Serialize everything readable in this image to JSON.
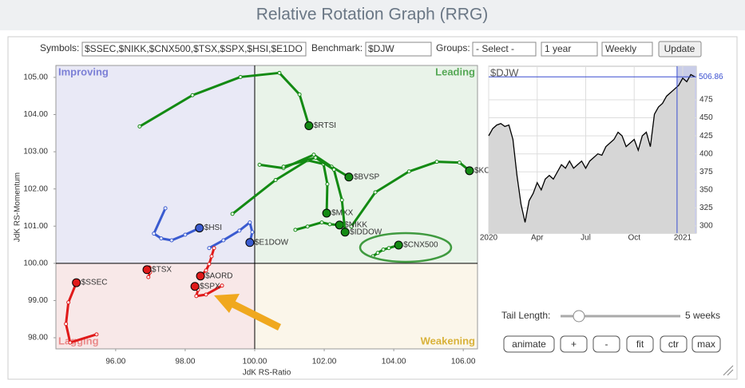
{
  "header": {
    "title": "Relative Rotation Graph (RRG)"
  },
  "controls": {
    "symbols_label": "Symbols:",
    "symbols": "$SSEC,$NIKK,$CNX500,$TSX,$SPX,$HSI,$E1DO",
    "benchmark_label": "Benchmark:",
    "benchmark": "$DJW",
    "groups_label": "Groups:",
    "groups": "- Select -",
    "period": "1 year",
    "interval": "Weekly",
    "update": "Update",
    "tail_label": "Tail Length:",
    "tail_value": "5 weeks",
    "buttons": [
      "animate",
      "+",
      "-",
      "fit",
      "ctr",
      "max"
    ]
  },
  "chart_data": [
    {
      "type": "rrg",
      "x_label": "JdK RS-Ratio",
      "y_label": "JdK RS-Momentum",
      "quadrants": [
        {
          "name": "Improving",
          "color": "#7b7fd6"
        },
        {
          "name": "Leading",
          "color": "#55a855"
        },
        {
          "name": "Weakening",
          "color": "#d9b23a"
        },
        {
          "name": "Lagging",
          "color": "#ea8a8a"
        }
      ],
      "quadrant_center": {
        "x": 100,
        "y": 100
      },
      "xlim": [
        94.28,
        106.41
      ],
      "ylim": [
        97.7,
        105.32
      ],
      "xticks": [
        {
          "value": 96,
          "label": "96.00"
        },
        {
          "value": 98,
          "label": "98.00"
        },
        {
          "value": 100,
          "label": "100.00"
        },
        {
          "value": 102,
          "label": "102.00"
        },
        {
          "value": 104,
          "label": "104.00"
        },
        {
          "value": 106,
          "label": "106.00"
        }
      ],
      "yticks": [
        {
          "value": 98,
          "label": "98.00"
        },
        {
          "value": 99,
          "label": "99.00"
        },
        {
          "value": 100,
          "label": "100.00"
        },
        {
          "value": 101,
          "label": "101.00"
        },
        {
          "value": 102,
          "label": "102.00"
        },
        {
          "value": 103,
          "label": "103.00"
        },
        {
          "value": 104,
          "label": "104.00"
        },
        {
          "value": 105,
          "label": "105.00"
        }
      ],
      "series": [
        {
          "name": "$RTSI",
          "color": "#138a13",
          "x": [
            96.69,
            98.21,
            99.59,
            100.71,
            101.29,
            101.56
          ],
          "values": [
            103.68,
            104.52,
            105.01,
            105.12,
            104.54,
            103.7
          ]
        },
        {
          "name": "$KOSPI",
          "color": "#138a13",
          "x": [
            102.78,
            103.47,
            104.44,
            105.24,
            105.89,
            106.18
          ],
          "values": [
            100.99,
            101.91,
            102.47,
            102.73,
            102.71,
            102.49
          ]
        },
        {
          "name": "$BVSP",
          "color": "#138a13",
          "x": [
            100.14,
            100.83,
            101.7,
            102.21,
            102.71
          ],
          "values": [
            102.65,
            102.56,
            102.92,
            102.6,
            102.32
          ]
        },
        {
          "name": "$MXX",
          "color": "#138a13",
          "x": [
            99.36,
            100.6,
            101.52,
            101.98,
            102.09,
            102.07
          ],
          "values": [
            101.33,
            102.24,
            102.77,
            102.67,
            102.13,
            101.35
          ]
        },
        {
          "name": "$NIKK",
          "color": "#138a13",
          "x": [
            101.17,
            101.52,
            101.93,
            102.16,
            102.44
          ],
          "values": [
            100.9,
            100.99,
            101.1,
            101.05,
            101.03
          ]
        },
        {
          "name": "$IDDOW",
          "color": "#138a13",
          "x": [
            100.83,
            101.75,
            102.28,
            102.51,
            102.6
          ],
          "values": [
            102.6,
            102.84,
            102.52,
            101.7,
            100.84
          ]
        },
        {
          "name": "$CNX500",
          "color": "#138a13",
          "x": [
            103.4,
            103.54,
            103.7,
            103.86,
            104.14
          ],
          "values": [
            100.19,
            100.28,
            100.37,
            100.41,
            100.49
          ]
        },
        {
          "name": "$HSI",
          "color": "#3a5bd0",
          "x": [
            97.43,
            97.1,
            97.31,
            97.61,
            98.0,
            98.41
          ],
          "values": [
            101.48,
            100.8,
            100.67,
            100.62,
            100.77,
            100.95
          ]
        },
        {
          "name": "$E1DOW",
          "color": "#3a5bd0",
          "x": [
            98.69,
            99.1,
            99.56,
            99.86,
            99.93,
            99.86
          ],
          "values": [
            100.41,
            100.62,
            100.88,
            101.1,
            100.84,
            100.56
          ]
        },
        {
          "name": "$TSX",
          "color": "#e01a1a",
          "x": [
            96.94,
            96.99,
            96.97,
            96.9
          ],
          "values": [
            99.63,
            99.76,
            99.89,
            99.83
          ]
        },
        {
          "name": "$AORD",
          "color": "#e01a1a",
          "x": [
            98.83,
            98.76,
            98.69,
            98.6,
            98.44
          ],
          "values": [
            100.41,
            100.19,
            99.98,
            99.81,
            99.66
          ]
        },
        {
          "name": "$SPX",
          "color": "#e01a1a",
          "x": [
            99.06,
            98.6,
            98.32,
            98.37,
            98.28
          ],
          "values": [
            99.4,
            99.16,
            99.12,
            99.29,
            99.38
          ]
        },
        {
          "name": "$SSEC",
          "color": "#e01a1a",
          "x": [
            95.45,
            94.69,
            94.57,
            94.64,
            94.87
          ],
          "values": [
            98.09,
            97.87,
            98.37,
            98.95,
            99.48
          ]
        }
      ]
    },
    {
      "type": "line",
      "title": "$DJW",
      "color": "#000000",
      "fill": "#d6d6d6",
      "xlim": [
        0,
        12.84
      ],
      "ylim": [
        290,
        521.5
      ],
      "xticks": [
        {
          "value": 0,
          "label": "2020"
        },
        {
          "value": 3,
          "label": "Apr"
        },
        {
          "value": 6,
          "label": "Jul"
        },
        {
          "value": 9,
          "label": "Oct"
        },
        {
          "value": 12,
          "label": "2021"
        }
      ],
      "yticks": [
        300,
        325,
        350,
        375,
        400,
        425,
        450,
        475
      ],
      "highlight_x": 11.65,
      "current": {
        "value": 506.86,
        "label": "506.86"
      },
      "x": [
        0,
        0.25,
        0.5,
        0.75,
        1,
        1.25,
        1.5,
        1.75,
        2,
        2.25,
        2.5,
        2.75,
        3,
        3.25,
        3.5,
        3.75,
        4,
        4.25,
        4.5,
        4.75,
        5,
        5.25,
        5.5,
        5.75,
        6,
        6.25,
        6.5,
        6.75,
        7,
        7.25,
        7.5,
        7.75,
        8,
        8.25,
        8.5,
        8.75,
        9,
        9.25,
        9.5,
        9.75,
        10,
        10.25,
        10.5,
        10.75,
        11,
        11.25,
        11.5,
        11.75,
        12,
        12.25,
        12.5,
        12.75
      ],
      "values": [
        425,
        435,
        440,
        442,
        438,
        440,
        420,
        370,
        330,
        305,
        335,
        345,
        360,
        350,
        365,
        370,
        365,
        375,
        385,
        380,
        390,
        380,
        385,
        390,
        380,
        390,
        395,
        400,
        398,
        410,
        415,
        420,
        430,
        425,
        410,
        415,
        420,
        405,
        425,
        430,
        410,
        455,
        465,
        470,
        480,
        485,
        490,
        495,
        505,
        500,
        510,
        506.86
      ]
    }
  ]
}
